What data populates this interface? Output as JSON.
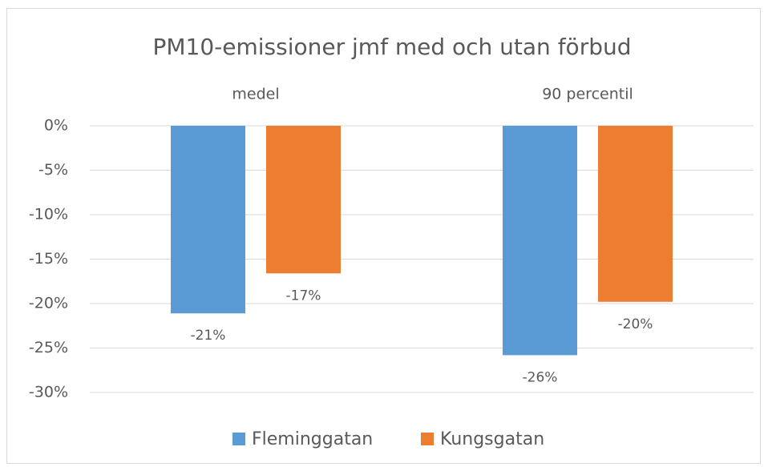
{
  "chart_data": {
    "type": "bar",
    "title": "PM10-emissioner jmf med och utan förbud",
    "categories": [
      "medel",
      "90 percentil"
    ],
    "series": [
      {
        "name": "Fleminggatan",
        "color": "#5b9bd5",
        "values": [
          -21.1,
          -25.8
        ],
        "value_labels": [
          "-21%",
          "-26%"
        ]
      },
      {
        "name": "Kungsgatan",
        "color": "#ed7d31",
        "values": [
          -16.6,
          -19.8
        ],
        "value_labels": [
          "-17%",
          "-20%"
        ]
      }
    ],
    "ylim": [
      -30,
      0
    ],
    "yticks": [
      {
        "value": 0,
        "label": "0%"
      },
      {
        "value": -5,
        "label": "-5%"
      },
      {
        "value": -10,
        "label": "-10%"
      },
      {
        "value": -15,
        "label": "-15%"
      },
      {
        "value": -20,
        "label": "-20%"
      },
      {
        "value": -25,
        "label": "-25%"
      },
      {
        "value": -30,
        "label": "-30%"
      }
    ],
    "grid": true,
    "legend": "bottom"
  }
}
